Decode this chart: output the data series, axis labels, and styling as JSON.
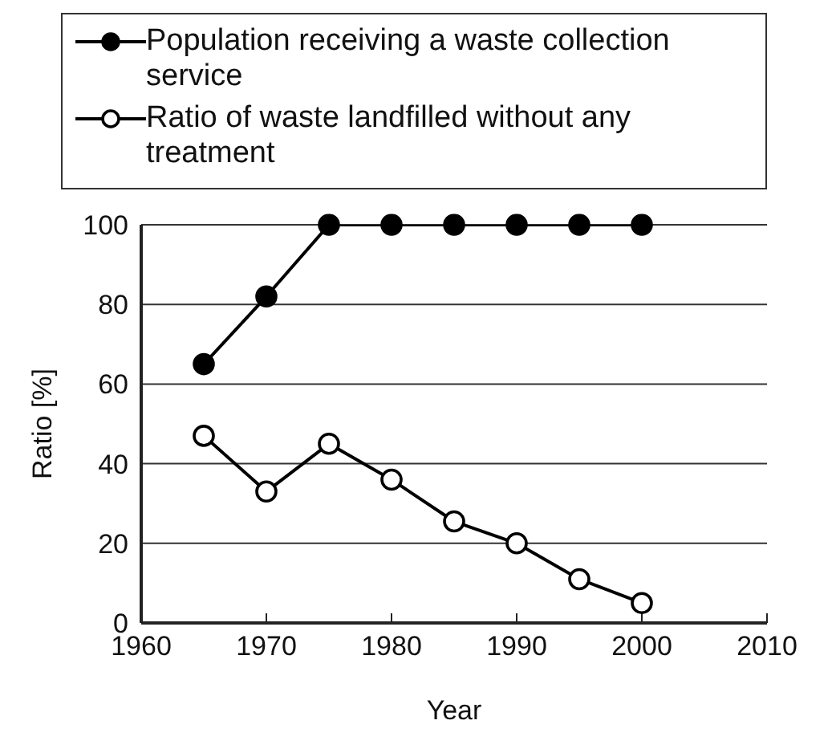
{
  "chart_data": {
    "type": "line",
    "xlabel": "Year",
    "ylabel": "Ratio [%]",
    "x": [
      1965,
      1970,
      1975,
      1980,
      1985,
      1990,
      1995,
      2000
    ],
    "series": [
      {
        "name": "Population receiving a waste collection service",
        "color": "#000000",
        "values": [
          65,
          82,
          100,
          100,
          100,
          100,
          100,
          100
        ]
      },
      {
        "name": "Ratio of waste landfilled without any treatment",
        "color": "#000000",
        "values": [
          47,
          33,
          45,
          36,
          25.5,
          20,
          11,
          5
        ]
      }
    ],
    "xlim": [
      1960,
      2010
    ],
    "xticks": [
      1960,
      1970,
      1980,
      1990,
      2000,
      2010
    ],
    "ylim": [
      0,
      100
    ],
    "yticks": [
      0,
      20,
      40,
      60,
      80,
      100
    ],
    "grid": "y",
    "legend": "top",
    "marker": "circle",
    "line_style": "solid"
  }
}
